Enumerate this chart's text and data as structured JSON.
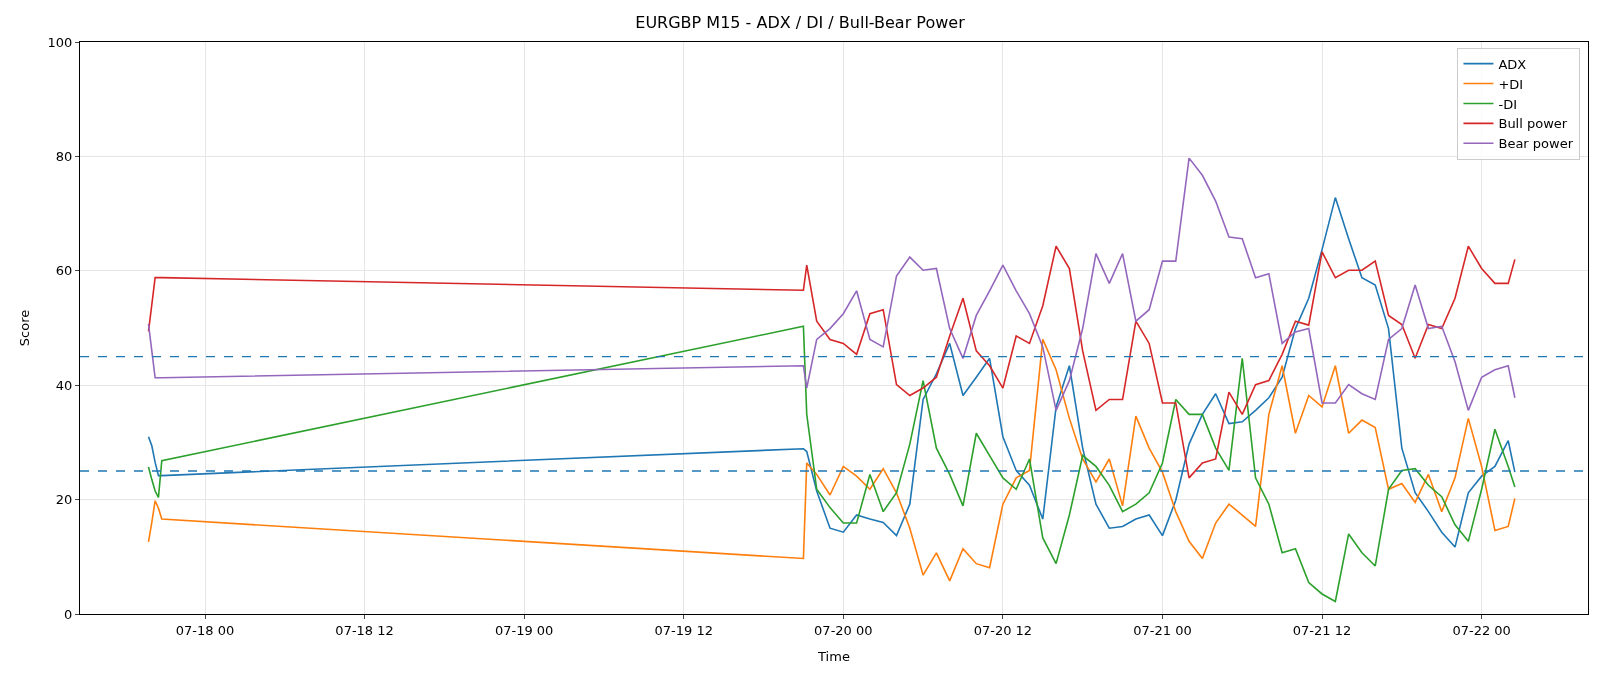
{
  "chart_data": {
    "type": "line",
    "title": "EURGBP M15 - ADX / DI / Bull-Bear Power",
    "xlabel": "Time",
    "ylabel": "Score",
    "x": [
      "--07-17T19:45",
      "--07-17T20:00",
      "--07-17T20:15",
      "--07-17T20:30",
      "--07-17T20:45",
      "--07-19T21:00",
      "--07-19T21:15",
      "--07-19T22:00",
      "--07-19T23:00",
      "--07-20T00:00",
      "--07-20T01:00",
      "--07-20T02:00",
      "--07-20T03:00",
      "--07-20T04:00",
      "--07-20T05:00",
      "--07-20T06:00",
      "--07-20T07:00",
      "--07-20T08:00",
      "--07-20T09:00",
      "--07-20T10:00",
      "--07-20T11:00",
      "--07-20T12:00",
      "--07-20T13:00",
      "--07-20T14:00",
      "--07-20T15:00",
      "--07-20T16:00",
      "--07-20T17:00",
      "--07-20T18:00",
      "--07-20T19:00",
      "--07-20T20:00",
      "--07-20T21:00",
      "--07-20T22:00",
      "--07-20T23:00",
      "--07-21T00:00",
      "--07-21T01:00",
      "--07-21T02:00",
      "--07-21T03:00",
      "--07-21T04:00",
      "--07-21T05:00",
      "--07-21T06:00",
      "--07-21T07:00",
      "--07-21T08:00",
      "--07-21T09:00",
      "--07-21T10:00",
      "--07-21T11:00",
      "--07-21T12:00",
      "--07-21T13:00",
      "--07-21T14:00",
      "--07-21T15:00",
      "--07-21T16:00",
      "--07-21T17:00",
      "--07-21T18:00",
      "--07-21T19:00",
      "--07-21T20:00",
      "--07-21T21:00",
      "--07-21T22:00",
      "--07-21T23:00",
      "--07-22T00:00",
      "--07-22T01:00",
      "--07-22T02:00",
      "--07-22T02:30"
    ],
    "series": [
      {
        "name": "ADX",
        "color": "#1f77b4",
        "values": [
          31.0,
          29.4,
          26.5,
          24.2,
          24.2,
          28.9,
          28.4,
          21.5,
          15.0,
          14.3,
          17.3,
          16.6,
          16.0,
          13.7,
          19.2,
          37.5,
          42.0,
          47.3,
          38.2,
          41.4,
          44.7,
          31.0,
          25.1,
          22.5,
          16.6,
          36.2,
          43.4,
          29.0,
          19.2,
          15.0,
          15.3,
          16.6,
          17.3,
          13.7,
          19.9,
          29.7,
          34.9,
          38.5,
          33.3,
          33.6,
          35.6,
          37.8,
          41.4,
          49.9,
          55.2,
          63.7,
          72.8,
          65.6,
          58.8,
          57.5,
          49.9,
          29.0,
          21.2,
          17.9,
          14.3,
          11.7,
          21.2,
          24.1,
          25.8,
          30.3,
          24.8
        ]
      },
      {
        "name": "+DI",
        "color": "#ff7f0e",
        "values": [
          12.6,
          16.0,
          19.8,
          18.5,
          16.6,
          9.7,
          26.4,
          24.4,
          20.8,
          25.8,
          24.1,
          21.8,
          25.4,
          21.2,
          15.0,
          6.8,
          10.7,
          5.8,
          11.4,
          8.8,
          8.1,
          19.2,
          23.8,
          25.1,
          48.0,
          42.7,
          34.2,
          27.1,
          23.1,
          27.1,
          18.9,
          34.6,
          29.0,
          24.8,
          17.9,
          12.7,
          9.7,
          15.9,
          19.2,
          17.3,
          15.3,
          34.9,
          43.4,
          31.6,
          38.2,
          36.2,
          43.4,
          31.6,
          33.9,
          32.6,
          21.8,
          22.8,
          19.5,
          24.4,
          17.9,
          23.8,
          34.2,
          25.8,
          14.6,
          15.3,
          20.2
        ]
      },
      {
        "name": "-DI",
        "color": "#2ca02c",
        "values": [
          25.7,
          23.5,
          21.5,
          20.4,
          26.8,
          50.3,
          34.9,
          21.8,
          18.6,
          15.9,
          15.9,
          24.4,
          17.9,
          21.2,
          29.7,
          40.8,
          29.0,
          24.4,
          18.9,
          31.6,
          27.7,
          23.8,
          21.8,
          27.1,
          13.3,
          8.8,
          17.3,
          27.7,
          25.8,
          22.5,
          17.9,
          19.2,
          21.2,
          26.4,
          37.5,
          34.9,
          34.9,
          29.0,
          25.1,
          44.7,
          23.8,
          19.2,
          10.7,
          11.4,
          5.5,
          3.5,
          2.2,
          14.0,
          10.7,
          8.4,
          21.8,
          25.1,
          25.4,
          22.5,
          20.5,
          15.6,
          12.7,
          21.8,
          32.3,
          25.8,
          22.2
        ]
      },
      {
        "name": "Bull power",
        "color": "#d62728",
        "values": [
          49.4,
          54.1,
          58.8,
          58.8,
          58.8,
          56.6,
          61.0,
          51.2,
          48.0,
          47.3,
          45.4,
          52.5,
          53.2,
          40.1,
          38.2,
          39.5,
          41.4,
          48.6,
          55.2,
          46.0,
          43.4,
          39.5,
          48.6,
          47.3,
          53.9,
          64.3,
          60.4,
          46.0,
          35.6,
          37.5,
          37.5,
          51.2,
          47.3,
          36.9,
          36.9,
          23.8,
          26.4,
          27.1,
          38.8,
          34.9,
          40.1,
          40.8,
          45.4,
          51.2,
          50.5,
          63.3,
          58.8,
          60.1,
          60.1,
          61.7,
          52.2,
          50.6,
          44.7,
          50.6,
          49.9,
          55.2,
          64.3,
          60.4,
          57.8,
          57.8,
          62.0
        ]
      },
      {
        "name": "Bear power",
        "color": "#9467bd",
        "values": [
          50.7,
          46.0,
          41.3,
          41.3,
          41.3,
          43.4,
          39.5,
          48.0,
          49.9,
          52.5,
          56.5,
          48.0,
          46.7,
          59.1,
          62.4,
          60.1,
          60.4,
          49.9,
          44.7,
          52.2,
          56.5,
          61.0,
          56.5,
          52.5,
          46.7,
          35.6,
          40.8,
          49.9,
          63.0,
          57.8,
          63.0,
          51.2,
          53.2,
          61.7,
          61.7,
          79.7,
          76.7,
          72.2,
          65.9,
          65.6,
          58.8,
          59.5,
          47.3,
          49.3,
          49.9,
          36.9,
          36.9,
          40.1,
          38.5,
          37.5,
          48.0,
          49.9,
          57.5,
          49.9,
          50.3,
          44.1,
          35.6,
          41.4,
          42.7,
          43.4,
          37.8
        ]
      }
    ],
    "xlim": [
      "--07-17T14:36",
      "--07-22T08:00"
    ],
    "xticks": [
      {
        "value": "--07-18T00:00",
        "label": "07-18 00"
      },
      {
        "value": "--07-18T12:00",
        "label": "07-18 12"
      },
      {
        "value": "--07-19T00:00",
        "label": "07-19 00"
      },
      {
        "value": "--07-19T12:00",
        "label": "07-19 12"
      },
      {
        "value": "--07-20T00:00",
        "label": "07-20 00"
      },
      {
        "value": "--07-20T12:00",
        "label": "07-20 12"
      },
      {
        "value": "--07-21T00:00",
        "label": "07-21 00"
      },
      {
        "value": "--07-21T12:00",
        "label": "07-21 12"
      },
      {
        "value": "--07-22T00:00",
        "label": "07-22 00"
      }
    ],
    "ylim": [
      0,
      100
    ],
    "yticks": [
      0,
      20,
      40,
      60,
      80,
      100
    ],
    "ref_lines": [
      {
        "axis": "y",
        "value": 45,
        "color": "#1f77b4",
        "line_style": "dashed"
      },
      {
        "axis": "y",
        "value": 25,
        "color": "#1f77b4",
        "line_style": "dashed"
      }
    ],
    "grid": true,
    "legend": "top right",
    "line_style": "solid"
  }
}
